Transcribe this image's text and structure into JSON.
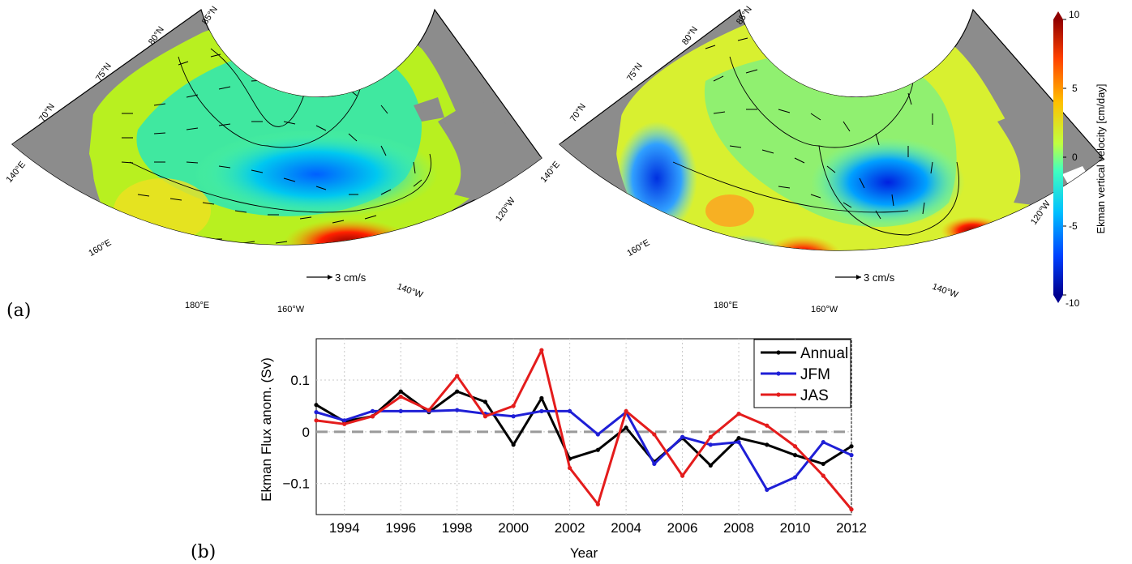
{
  "panel_labels": {
    "a": "(a)",
    "b": "(b)"
  },
  "maps": {
    "left": {
      "lat_labels": [
        "85°N",
        "80°N",
        "75°N",
        "70°N"
      ],
      "lon_labels": [
        "140°E",
        "160°E",
        "180°E",
        "160°W",
        "140°W",
        "120°W"
      ],
      "scale_label": "3 cm/s"
    },
    "right": {
      "lat_labels": [
        "85°N",
        "80°N",
        "75°N",
        "70°N"
      ],
      "lon_labels": [
        "140°E",
        "160°E",
        "180°E",
        "160°W",
        "140°W",
        "120°W"
      ],
      "scale_label": "3 cm/s"
    }
  },
  "colorbar": {
    "label": "Ekman vertical velocity [cm/day]",
    "ticks": [
      "10",
      "5",
      "0",
      "-5",
      "-10"
    ],
    "range": [
      -10,
      10
    ],
    "colors": [
      "#00008f",
      "#0040ff",
      "#00c0ff",
      "#40ffc0",
      "#c0ff40",
      "#ffc000",
      "#ff4000",
      "#900000"
    ]
  },
  "chart_data": {
    "type": "line",
    "xlabel": "Year",
    "ylabel": "Ekman Flux anom. (Sv)",
    "xlim": [
      1993,
      2012
    ],
    "ylim": [
      -0.16,
      0.18
    ],
    "xticks": [
      "1994",
      "1996",
      "1998",
      "2000",
      "2002",
      "2004",
      "2006",
      "2008",
      "2010",
      "2012"
    ],
    "yticks": [
      "0.1",
      "0",
      "−0.1"
    ],
    "grid": true,
    "legend_position": "top-right",
    "x": [
      1993,
      1994,
      1995,
      1996,
      1997,
      1998,
      1999,
      2000,
      2001,
      2002,
      2003,
      2004,
      2005,
      2006,
      2007,
      2008,
      2009,
      2010,
      2011,
      2012
    ],
    "series": [
      {
        "name": "Annual",
        "color": "#000000",
        "values": [
          0.052,
          0.02,
          0.03,
          0.078,
          0.038,
          0.078,
          0.058,
          -0.025,
          0.065,
          -0.052,
          -0.035,
          0.008,
          -0.058,
          -0.012,
          -0.065,
          -0.012,
          -0.025,
          -0.045,
          -0.062,
          -0.028
        ]
      },
      {
        "name": "JFM",
        "color": "#1f1fd6",
        "values": [
          0.038,
          0.022,
          0.04,
          0.04,
          0.04,
          0.042,
          0.035,
          0.03,
          0.04,
          0.04,
          -0.005,
          0.038,
          -0.062,
          -0.01,
          -0.025,
          -0.02,
          -0.112,
          -0.088,
          -0.02,
          -0.045
        ]
      },
      {
        "name": "JAS",
        "color": "#e41c1c",
        "values": [
          0.022,
          0.015,
          0.03,
          0.068,
          0.042,
          0.108,
          0.03,
          0.05,
          0.158,
          -0.07,
          -0.14,
          0.04,
          -0.005,
          -0.085,
          -0.01,
          0.035,
          0.012,
          -0.028,
          -0.085,
          -0.15
        ]
      }
    ],
    "zero_line_color": "#9a9a9a"
  }
}
